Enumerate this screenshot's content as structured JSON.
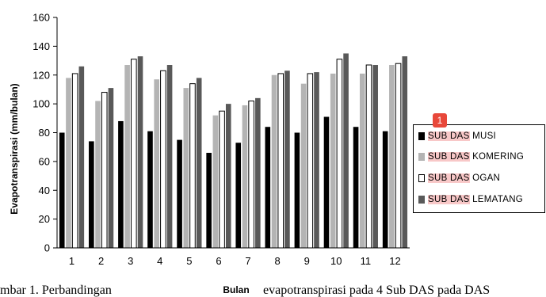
{
  "chart_data": {
    "type": "bar",
    "title": "",
    "xlabel": "Bulan",
    "ylabel": "Evapotranspirasi (mm/bulan)",
    "categories": [
      "1",
      "2",
      "3",
      "4",
      "5",
      "6",
      "7",
      "8",
      "9",
      "10",
      "11",
      "12"
    ],
    "ylim": [
      0,
      160
    ],
    "yticks": [
      "0",
      "20",
      "40",
      "60",
      "80",
      "100",
      "120",
      "140",
      "160"
    ],
    "grid": false,
    "legend_position": "right",
    "series": [
      {
        "name": "SUB DAS MUSI",
        "color": "#000000",
        "style": "solid",
        "values": [
          80,
          74,
          88,
          81,
          75,
          66,
          73,
          84,
          80,
          91,
          84,
          81
        ]
      },
      {
        "name": "SUB DAS KOMERING",
        "color": "#b4b4b4",
        "style": "solid",
        "values": [
          118,
          102,
          127,
          117,
          111,
          92,
          99,
          120,
          114,
          121,
          121,
          127
        ]
      },
      {
        "name": "SUB DAS OGAN",
        "color": "#ffffff",
        "style": "outline",
        "values": [
          121,
          108,
          131,
          123,
          114,
          95,
          102,
          121,
          121,
          131,
          127,
          128
        ]
      },
      {
        "name": "SUB DAS LEMATANG",
        "color": "#595959",
        "style": "solid",
        "values": [
          126,
          111,
          133,
          127,
          118,
          100,
          104,
          123,
          122,
          135,
          127,
          133
        ]
      }
    ]
  },
  "legend": {
    "items": [
      {
        "prefix": "SUB DAS",
        "rest": " MUSI"
      },
      {
        "prefix": "SUB DAS",
        "rest": " KOMERING"
      },
      {
        "prefix": "SUB DAS",
        "rest": " OGAN"
      },
      {
        "prefix": "SUB DAS",
        "rest": " LEMATANG"
      }
    ],
    "marker_label": "1",
    "highlight_color": "#f8c8c8",
    "marker_color": "#e8483a"
  },
  "caption": {
    "parts": [
      "mbar 1. Perbandingan",
      "evapotranspirasi pada 4 Sub DAS pada DAS"
    ]
  }
}
